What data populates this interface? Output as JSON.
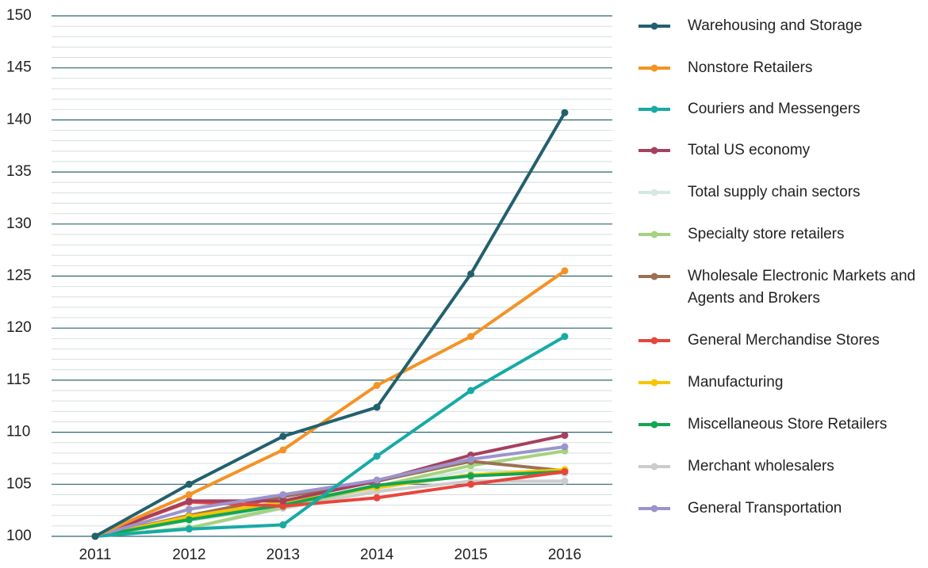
{
  "chart_data": {
    "type": "line",
    "categories": [
      "2011",
      "2012",
      "2013",
      "2014",
      "2015",
      "2016"
    ],
    "ylim": [
      100,
      150
    ],
    "yticks": [
      100,
      105,
      110,
      115,
      120,
      125,
      130,
      135,
      140,
      145,
      150
    ],
    "minor_yticks": [
      101,
      102,
      103,
      104,
      106,
      107,
      108,
      109,
      111,
      112,
      113,
      114,
      116,
      117,
      118,
      119,
      121,
      122,
      123,
      124,
      126,
      127,
      128,
      129,
      131,
      132,
      133,
      134,
      136,
      137,
      138,
      139,
      141,
      142,
      143,
      144,
      146,
      147,
      148,
      149
    ],
    "grid": true,
    "legend": "right",
    "series": [
      {
        "name": "Warehousing and Storage",
        "color": "#23606e",
        "values": [
          100,
          105.0,
          109.6,
          112.4,
          125.2,
          140.7
        ]
      },
      {
        "name": "Nonstore Retailers",
        "color": "#f39325",
        "values": [
          100,
          104.0,
          108.3,
          114.5,
          119.2,
          125.5
        ]
      },
      {
        "name": "Couriers and Messengers",
        "color": "#17aaa6",
        "values": [
          100,
          100.7,
          101.1,
          107.7,
          114.0,
          119.2
        ]
      },
      {
        "name": "Total US economy",
        "color": "#a6405f",
        "values": [
          100,
          103.4,
          103.4,
          105.3,
          107.8,
          109.7
        ]
      },
      {
        "name": "Total supply chain sectors",
        "color": "#d5e8e2",
        "values": [
          100,
          101.5,
          102.8,
          104.5,
          106.4,
          106.0
        ]
      },
      {
        "name": "Specialty store retailers",
        "color": "#a4d37f",
        "values": [
          100,
          100.8,
          102.8,
          104.8,
          106.8,
          108.2
        ]
      },
      {
        "name": "Wholesale Electronic Markets and Agents and Brokers",
        "color": "#9b7154",
        "values": [
          100,
          102.0,
          103.8,
          105.3,
          107.2,
          106.3
        ]
      },
      {
        "name": "General Merchandise Stores",
        "color": "#e8453c",
        "values": [
          100,
          103.3,
          102.9,
          103.7,
          105.0,
          106.2
        ]
      },
      {
        "name": "Manufacturing",
        "color": "#f7c500",
        "values": [
          100,
          101.9,
          103.3,
          104.7,
          105.9,
          106.4
        ]
      },
      {
        "name": "Miscellaneous Store Retailers",
        "color": "#13a652",
        "values": [
          100,
          101.6,
          103.0,
          104.9,
          105.8,
          106.2
        ]
      },
      {
        "name": "Merchant wholesalers",
        "color": "#cccccc",
        "values": [
          100,
          100.8,
          102.7,
          104.3,
          105.3,
          105.3
        ]
      },
      {
        "name": "General Transportation",
        "color": "#9b94cc",
        "values": [
          100,
          102.6,
          104.0,
          105.4,
          107.4,
          108.6
        ]
      }
    ]
  }
}
